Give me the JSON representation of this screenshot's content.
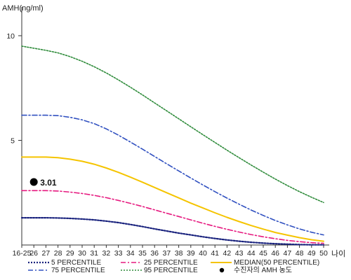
{
  "chart_data": {
    "type": "line",
    "ylabel": "AMH(ng/ml)",
    "xlabel": "나이",
    "categories": [
      "16-25",
      "26",
      "27",
      "28",
      "29",
      "30",
      "31",
      "32",
      "33",
      "34",
      "35",
      "36",
      "37",
      "38",
      "39",
      "40",
      "41",
      "42",
      "43",
      "44",
      "45",
      "46",
      "47",
      "48",
      "49",
      "50"
    ],
    "yticks": [
      5,
      10
    ],
    "ylim": [
      0,
      10.8
    ],
    "series": [
      {
        "name": "5 PERCENTILE",
        "color": "#1a237e",
        "dash": "2,2",
        "width": 2.2,
        "values": [
          1.3,
          1.3,
          1.3,
          1.29,
          1.27,
          1.24,
          1.2,
          1.14,
          1.07,
          0.98,
          0.88,
          0.77,
          0.67,
          0.57,
          0.48,
          0.39,
          0.31,
          0.24,
          0.18,
          0.13,
          0.09,
          0.06,
          0.04,
          0.02,
          0.01,
          0.01
        ]
      },
      {
        "name": "25 PERCENTILE",
        "color": "#e6197f",
        "dash": "7,3,2,3",
        "width": 1.6,
        "values": [
          2.6,
          2.6,
          2.6,
          2.58,
          2.53,
          2.46,
          2.37,
          2.26,
          2.13,
          1.99,
          1.84,
          1.68,
          1.52,
          1.36,
          1.2,
          1.04,
          0.89,
          0.75,
          0.62,
          0.5,
          0.39,
          0.3,
          0.22,
          0.16,
          0.11,
          0.08
        ]
      },
      {
        "name": "MEDIAN(50 PERCENTILE)",
        "color": "#f5c400",
        "dash": "",
        "width": 2,
        "values": [
          4.2,
          4.2,
          4.2,
          4.17,
          4.1,
          4.0,
          3.86,
          3.68,
          3.47,
          3.24,
          3.0,
          2.75,
          2.5,
          2.25,
          2.0,
          1.77,
          1.54,
          1.32,
          1.12,
          0.93,
          0.76,
          0.6,
          0.47,
          0.35,
          0.25,
          0.18
        ]
      },
      {
        "name": "75 PERCENTILE",
        "color": "#3050c0",
        "dash": "7,3,2,3",
        "width": 1.6,
        "values": [
          6.2,
          6.2,
          6.2,
          6.18,
          6.1,
          5.98,
          5.8,
          5.55,
          5.25,
          4.92,
          4.58,
          4.23,
          3.88,
          3.54,
          3.2,
          2.87,
          2.55,
          2.24,
          1.95,
          1.67,
          1.41,
          1.17,
          0.96,
          0.77,
          0.61,
          0.48
        ]
      },
      {
        "name": "95 PERCENTILE",
        "color": "#2e8b3a",
        "dash": "2,2",
        "width": 1.6,
        "values": [
          9.5,
          9.4,
          9.3,
          9.18,
          9.0,
          8.78,
          8.52,
          8.22,
          7.89,
          7.54,
          7.17,
          6.79,
          6.41,
          6.03,
          5.65,
          5.27,
          4.9,
          4.53,
          4.17,
          3.82,
          3.48,
          3.15,
          2.84,
          2.55,
          2.28,
          2.03
        ]
      }
    ],
    "point": {
      "label": "수진자의 AMH 농도",
      "text": "3.01",
      "x": "26",
      "y": 3.01,
      "color": "#000000"
    },
    "legend": {
      "placement": "bottom",
      "items": [
        {
          "text": "5 PERCENTILE",
          "key": "p5"
        },
        {
          "text": "25 PERCENTILE",
          "key": "p25"
        },
        {
          "text": "MEDIAN(50 PERCENTILE)",
          "key": "p50"
        },
        {
          "text": "75 PERCENTILE",
          "key": "p75"
        },
        {
          "text": "95 PERCENTILE",
          "key": "p95"
        },
        {
          "text": "수진자의 AMH 농도",
          "key": "point"
        }
      ]
    },
    "grid": false
  }
}
